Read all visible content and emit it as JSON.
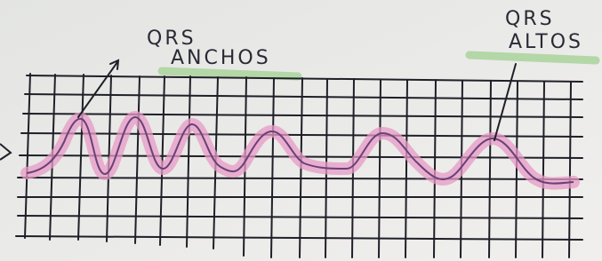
{
  "annotations": [
    {
      "line1": "QRS",
      "line2": "ANCHOS"
    },
    {
      "line1": "QRS",
      "line2": "ALTOS"
    }
  ]
}
